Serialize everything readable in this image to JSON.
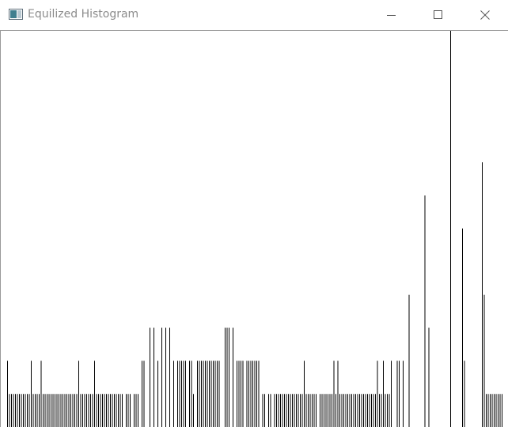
{
  "window": {
    "title": "Equilized Histogram"
  },
  "titlebar_controls": {
    "minimize_icon": "minimize-icon",
    "maximize_icon": "maximize-icon",
    "close_icon": "close-icon"
  },
  "colors": {
    "bar": "#000000",
    "background": "#ffffff",
    "title_text": "#8c8c8c"
  },
  "chart_data": {
    "type": "bar",
    "title": "",
    "xlabel": "",
    "ylabel": "",
    "xlim": [
      0,
      255
    ],
    "ylim": [
      0,
      12
    ],
    "grid": false,
    "values": [
      0,
      0,
      0,
      2,
      1,
      1,
      1,
      1,
      1,
      1,
      1,
      1,
      1,
      1,
      1,
      2,
      1,
      1,
      1,
      1,
      2,
      1,
      1,
      1,
      1,
      1,
      1,
      1,
      1,
      1,
      1,
      1,
      1,
      1,
      1,
      1,
      1,
      1,
      1,
      2,
      1,
      1,
      1,
      1,
      1,
      1,
      1,
      2,
      1,
      1,
      1,
      1,
      1,
      1,
      1,
      1,
      1,
      1,
      1,
      1,
      1,
      1,
      0,
      1,
      1,
      1,
      0,
      1,
      1,
      1,
      0,
      2,
      2,
      0,
      0,
      3,
      0,
      3,
      0,
      2,
      0,
      3,
      0,
      3,
      0,
      3,
      0,
      2,
      0,
      2,
      2,
      2,
      2,
      2,
      0,
      2,
      2,
      1,
      0,
      2,
      2,
      2,
      2,
      2,
      2,
      2,
      2,
      2,
      2,
      2,
      2,
      0,
      0,
      3,
      3,
      3,
      0,
      3,
      0,
      2,
      2,
      2,
      2,
      0,
      2,
      2,
      2,
      2,
      2,
      2,
      2,
      0,
      1,
      1,
      0,
      1,
      1,
      0,
      1,
      1,
      1,
      1,
      1,
      1,
      1,
      1,
      1,
      1,
      1,
      1,
      1,
      1,
      1,
      2,
      1,
      1,
      1,
      1,
      1,
      1,
      0,
      1,
      1,
      1,
      1,
      1,
      1,
      1,
      2,
      1,
      2,
      1,
      1,
      1,
      1,
      1,
      1,
      1,
      1,
      1,
      1,
      1,
      1,
      1,
      1,
      1,
      1,
      1,
      1,
      1,
      2,
      1,
      1,
      2,
      1,
      1,
      1,
      2,
      0,
      0,
      2,
      2,
      0,
      2,
      0,
      0,
      4,
      0,
      0,
      0,
      0,
      0,
      0,
      0,
      7,
      0,
      3,
      0,
      0,
      0,
      0,
      0,
      0,
      0,
      0,
      0,
      0,
      12,
      0,
      0,
      0,
      0,
      0,
      6,
      2,
      0,
      0,
      0,
      0,
      0,
      0,
      0,
      0,
      8,
      4,
      1,
      1,
      1,
      1,
      1,
      1,
      1,
      1,
      1
    ]
  }
}
